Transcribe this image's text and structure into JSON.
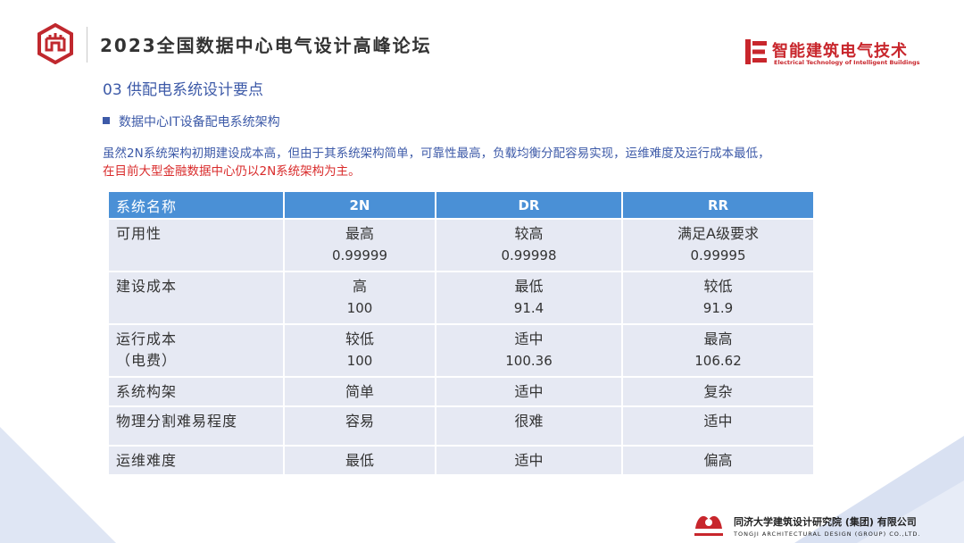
{
  "header": {
    "title": "2023全国数据中心电气设计高峰论坛",
    "right_logo_cn": "智能建筑电气技术",
    "right_logo_en": "Electrical Technology of Intelligent Buildings"
  },
  "section_title": "03 供配电系统设计要点",
  "bullet": "数据中心IT设备配电系统架构",
  "description": {
    "line1": "虽然2N系统架构初期建设成本高，但由于其系统架构简单，可靠性最高，负载均衡分配容易实现，运维难度及运行成本最低，",
    "line2": "在目前大型金融数据中心仍以2N系统架构为主。"
  },
  "table": {
    "headers": [
      "系统名称",
      "2N",
      "DR",
      "RR"
    ],
    "rows": [
      {
        "name": "可用性",
        "name2": "",
        "cells": [
          {
            "t": "最高",
            "n": "0.99999"
          },
          {
            "t": "较高",
            "n": "0.99998"
          },
          {
            "t": "满足A级要求",
            "n": "0.99995"
          }
        ]
      },
      {
        "name": "建设成本",
        "name2": "",
        "cells": [
          {
            "t": "高",
            "n": "100"
          },
          {
            "t": "最低",
            "n": "91.4"
          },
          {
            "t": "较低",
            "n": "91.9"
          }
        ]
      },
      {
        "name": "运行成本",
        "name2": "（电费）",
        "cells": [
          {
            "t": "较低",
            "n": "100"
          },
          {
            "t": "适中",
            "n": "100.36"
          },
          {
            "t": "最高",
            "n": "106.62"
          }
        ]
      },
      {
        "name": "系统构架",
        "name2": "",
        "cells": [
          {
            "t": "简单",
            "n": ""
          },
          {
            "t": "适中",
            "n": ""
          },
          {
            "t": "复杂",
            "n": ""
          }
        ]
      },
      {
        "name": "物理分割难易程度",
        "name2": "",
        "cells": [
          {
            "t": "容易",
            "n": ""
          },
          {
            "t": "很难",
            "n": ""
          },
          {
            "t": "适中",
            "n": ""
          }
        ]
      },
      {
        "name": "运维难度",
        "name2": "",
        "cells": [
          {
            "t": "最低",
            "n": ""
          },
          {
            "t": "适中",
            "n": ""
          },
          {
            "t": "偏高",
            "n": ""
          }
        ]
      }
    ]
  },
  "footer": {
    "cn": "同济大学建筑设计研究院 (集团) 有限公司",
    "en": "TONGJI ARCHITECTURAL DESIGN (GROUP) CO.,LTD."
  },
  "colors": {
    "accent_blue": "#3d5aa8",
    "table_header": "#4a90d6",
    "table_row": "#e6e9f3",
    "emphasis_red": "#d92b2b",
    "brand_red": "#c8262c"
  }
}
